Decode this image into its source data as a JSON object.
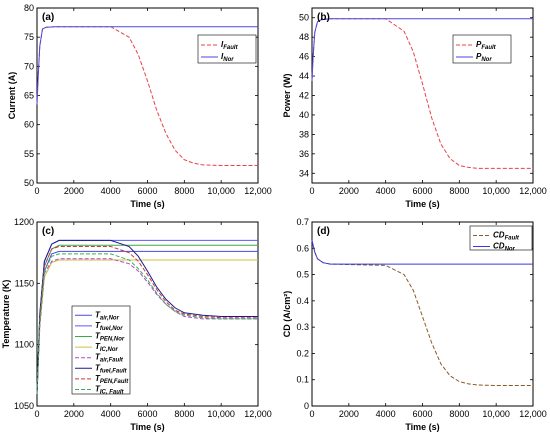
{
  "chart_data": [
    {
      "type": "line",
      "panel_label": "(a)",
      "xlabel": "Time (s)",
      "ylabel": "Current (A)",
      "xlim": [
        0,
        12000
      ],
      "ylim": [
        50,
        80
      ],
      "xticks": [
        "0",
        "2000",
        "4000",
        "6000",
        "8000",
        "10,000",
        "12,000"
      ],
      "yticks": [
        "50",
        "55",
        "60",
        "65",
        "70",
        "75",
        "80"
      ],
      "legend_position": "right",
      "series": [
        {
          "name": "I",
          "sub": "Fault",
          "color": "#e8414a",
          "dash": "4,2",
          "x": [
            0,
            60,
            150,
            300,
            500,
            1000,
            4000,
            5000,
            5500,
            6000,
            6500,
            7000,
            7500,
            8000,
            8500,
            9000,
            10000,
            12000
          ],
          "y": [
            63.5,
            68.0,
            73.5,
            76.4,
            76.7,
            76.8,
            76.8,
            75.0,
            72.0,
            67.5,
            62.5,
            58.5,
            55.6,
            54.0,
            53.4,
            53.1,
            53.0,
            53.0
          ]
        },
        {
          "name": "I",
          "sub": "Nor",
          "color": "#4a4adc",
          "dash": "",
          "x": [
            0,
            60,
            150,
            300,
            500,
            1000,
            12000
          ],
          "y": [
            63.5,
            68.0,
            73.5,
            76.4,
            76.7,
            76.8,
            76.8
          ]
        }
      ]
    },
    {
      "type": "line",
      "panel_label": "(b)",
      "xlabel": "Time (s)",
      "ylabel": "Power (W)",
      "xlim": [
        0,
        12000
      ],
      "ylim": [
        33,
        51
      ],
      "xticks": [
        "0",
        "2000",
        "4000",
        "6000",
        "8000",
        "10,000",
        "12,000"
      ],
      "yticks": [
        "34",
        "36",
        "38",
        "40",
        "42",
        "44",
        "46",
        "48",
        "50"
      ],
      "legend_position": "right",
      "series": [
        {
          "name": "P",
          "sub": "Fault",
          "color": "#e8414a",
          "dash": "4,2",
          "x": [
            0,
            60,
            150,
            300,
            500,
            1000,
            4000,
            5000,
            5500,
            6000,
            6500,
            7000,
            7500,
            8000,
            8500,
            9000,
            10000,
            12000
          ],
          "y": [
            43.5,
            46.0,
            48.5,
            49.6,
            49.8,
            49.9,
            49.9,
            48.6,
            46.5,
            43.2,
            39.7,
            37.0,
            35.5,
            34.8,
            34.6,
            34.5,
            34.5,
            34.5
          ]
        },
        {
          "name": "P",
          "sub": "Nor",
          "color": "#4a4adc",
          "dash": "",
          "x": [
            0,
            60,
            150,
            300,
            500,
            1000,
            12000
          ],
          "y": [
            43.5,
            46.0,
            48.5,
            49.6,
            49.8,
            49.9,
            49.9
          ]
        }
      ]
    },
    {
      "type": "line",
      "panel_label": "(c)",
      "xlabel": "Time (s)",
      "ylabel": "Temperature (K)",
      "xlim": [
        0,
        12000
      ],
      "ylim": [
        1050,
        1200
      ],
      "xticks": [
        "0",
        "2000",
        "4000",
        "6000",
        "8000",
        "10,000",
        "12,000"
      ],
      "yticks": [
        "1050",
        "1100",
        "1150",
        "1200"
      ],
      "legend_position": "lower-left",
      "series": [
        {
          "name": "T",
          "sub": "air,Nor",
          "color": "#4a4adc",
          "dash": "",
          "x": [
            0,
            150,
            400,
            800,
            1200,
            12000
          ],
          "y": [
            1060,
            1120,
            1160,
            1174,
            1176,
            1176
          ]
        },
        {
          "name": "T",
          "sub": "fuel,Nor",
          "color": "#5a5aff",
          "dash": "",
          "x": [
            0,
            150,
            400,
            800,
            1200,
            12000
          ],
          "y": [
            1060,
            1125,
            1168,
            1182,
            1185,
            1185
          ]
        },
        {
          "name": "T",
          "sub": "PEN,Nor",
          "color": "#3aa84a",
          "dash": "",
          "x": [
            0,
            150,
            400,
            800,
            1200,
            12000
          ],
          "y": [
            1060,
            1122,
            1164,
            1178,
            1181,
            1181
          ]
        },
        {
          "name": "T",
          "sub": "IC,Nor",
          "color": "#d0c040",
          "dash": "",
          "x": [
            0,
            150,
            400,
            800,
            1200,
            12000
          ],
          "y": [
            1060,
            1115,
            1155,
            1167,
            1169,
            1169
          ]
        },
        {
          "name": "T",
          "sub": "air,Fault",
          "color": "#b048c8",
          "dash": "4,2",
          "x": [
            0,
            150,
            400,
            800,
            1200,
            4000,
            5000,
            5500,
            6000,
            6500,
            7000,
            7500,
            8000,
            9000,
            10000,
            12000
          ],
          "y": [
            1060,
            1115,
            1158,
            1168,
            1170,
            1170,
            1166,
            1160,
            1151,
            1141,
            1133,
            1127,
            1123,
            1121,
            1121,
            1121
          ]
        },
        {
          "name": "T",
          "sub": "fuel,Fault",
          "color": "#1a1a90",
          "dash": "",
          "x": [
            0,
            150,
            400,
            800,
            1200,
            4000,
            5000,
            5500,
            6000,
            6500,
            7000,
            7500,
            8000,
            9000,
            10000,
            12000
          ],
          "y": [
            1060,
            1125,
            1168,
            1182,
            1185,
            1185,
            1180,
            1172,
            1160,
            1147,
            1137,
            1130,
            1126,
            1124,
            1123,
            1123
          ]
        },
        {
          "name": "T",
          "sub": "PEN,Fault",
          "color": "#c83a3a",
          "dash": "4,2",
          "x": [
            0,
            150,
            400,
            800,
            1200,
            4000,
            5000,
            5500,
            6000,
            6500,
            7000,
            7500,
            8000,
            9000,
            10000,
            12000
          ],
          "y": [
            1060,
            1122,
            1164,
            1178,
            1180,
            1180,
            1175,
            1168,
            1157,
            1145,
            1135,
            1128,
            1125,
            1123,
            1122,
            1122
          ]
        },
        {
          "name": "T",
          "sub": "IC, Fault",
          "color": "#38b05a",
          "dash": "4,2",
          "x": [
            0,
            150,
            400,
            800,
            1200,
            4000,
            5000,
            5500,
            6000,
            6500,
            7000,
            7500,
            8000,
            9000,
            10000,
            12000
          ],
          "y": [
            1060,
            1118,
            1160,
            1172,
            1174,
            1174,
            1169,
            1162,
            1153,
            1142,
            1133,
            1127,
            1124,
            1122,
            1121,
            1121
          ]
        }
      ]
    },
    {
      "type": "line",
      "panel_label": "(d)",
      "xlabel": "Time (s)",
      "ylabel": "CD (A/cm²)",
      "xlim": [
        0,
        12000
      ],
      "ylim": [
        0,
        0.7
      ],
      "xticks": [
        "0",
        "2000",
        "4000",
        "6000",
        "8000",
        "10,000",
        "12,000"
      ],
      "yticks": [
        "0",
        "0.1",
        "0.2",
        "0.3",
        "0.4",
        "0.5",
        "0.6",
        "0.7"
      ],
      "legend_position": "top-right",
      "series": [
        {
          "name": "CD",
          "sub": "Fault",
          "color": "#8a5a2a",
          "dash": "4,2",
          "x": [
            0,
            50,
            150,
            300,
            600,
            1000,
            4000,
            5000,
            5500,
            6000,
            6500,
            7000,
            7500,
            8000,
            8500,
            9000,
            10000,
            12000
          ],
          "y": [
            0.63,
            0.615,
            0.585,
            0.56,
            0.545,
            0.54,
            0.535,
            0.5,
            0.44,
            0.34,
            0.24,
            0.16,
            0.115,
            0.093,
            0.084,
            0.08,
            0.078,
            0.078
          ]
        },
        {
          "name": "CD",
          "sub": "Nor",
          "color": "#3a3ad8",
          "dash": "",
          "x": [
            0,
            50,
            150,
            300,
            600,
            1000,
            12000
          ],
          "y": [
            0.63,
            0.615,
            0.585,
            0.56,
            0.545,
            0.54,
            0.54
          ]
        }
      ]
    }
  ]
}
